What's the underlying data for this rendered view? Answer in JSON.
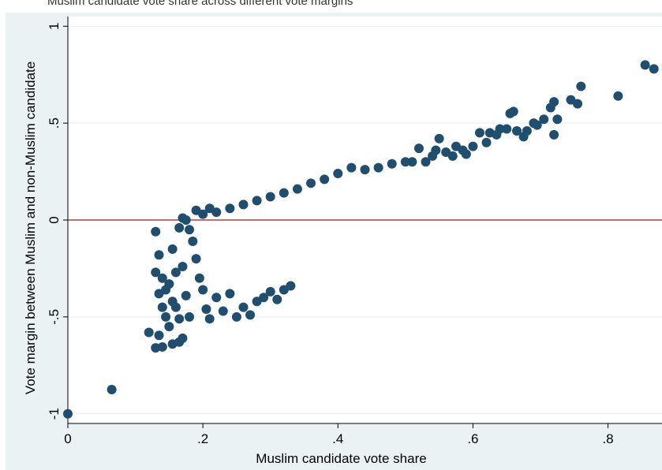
{
  "caption": "Muslim candidate vote share across different vote margins",
  "chart_data": {
    "type": "scatter",
    "title": "",
    "xlabel": "Muslim candidate vote share",
    "ylabel": "Vote margin between Muslim and non-Muslim candidate",
    "xlim": [
      0,
      0.88
    ],
    "ylim": [
      -1.05,
      1.05
    ],
    "xticks": [
      {
        "value": 0,
        "label": "0"
      },
      {
        "value": 0.2,
        "label": ".2"
      },
      {
        "value": 0.4,
        "label": ".4"
      },
      {
        "value": 0.6,
        "label": ".6"
      },
      {
        "value": 0.8,
        "label": ".8"
      }
    ],
    "yticks": [
      {
        "value": -1,
        "label": "-1"
      },
      {
        "value": -0.5,
        "label": "-.5"
      },
      {
        "value": 0,
        "label": "0"
      },
      {
        "value": 0.5,
        "label": ".5"
      },
      {
        "value": 1,
        "label": "1"
      }
    ],
    "grid": true,
    "reference_line": {
      "y": 0,
      "color": "#b0413e"
    },
    "colors": {
      "points": "#1f4e6e",
      "plot_background": "#ffffff",
      "outer_background": "#eaf2f3",
      "grid": "#e6eef0"
    },
    "points": [
      [
        0.0,
        -1.0
      ],
      [
        0.065,
        -0.875
      ],
      [
        0.12,
        -0.58
      ],
      [
        0.13,
        -0.66
      ],
      [
        0.135,
        -0.595
      ],
      [
        0.14,
        -0.655
      ],
      [
        0.155,
        -0.64
      ],
      [
        0.165,
        -0.63
      ],
      [
        0.17,
        -0.61
      ],
      [
        0.15,
        -0.55
      ],
      [
        0.145,
        -0.5
      ],
      [
        0.14,
        -0.45
      ],
      [
        0.135,
        -0.38
      ],
      [
        0.13,
        -0.27
      ],
      [
        0.13,
        -0.06
      ],
      [
        0.135,
        -0.18
      ],
      [
        0.14,
        -0.3
      ],
      [
        0.145,
        -0.36
      ],
      [
        0.15,
        -0.33
      ],
      [
        0.155,
        -0.42
      ],
      [
        0.16,
        -0.45
      ],
      [
        0.165,
        -0.51
      ],
      [
        0.16,
        -0.27
      ],
      [
        0.17,
        -0.24
      ],
      [
        0.175,
        -0.39
      ],
      [
        0.18,
        -0.5
      ],
      [
        0.155,
        -0.15
      ],
      [
        0.165,
        -0.04
      ],
      [
        0.17,
        0.01
      ],
      [
        0.175,
        0.0
      ],
      [
        0.18,
        -0.05
      ],
      [
        0.185,
        -0.11
      ],
      [
        0.19,
        -0.2
      ],
      [
        0.195,
        -0.3
      ],
      [
        0.2,
        -0.36
      ],
      [
        0.205,
        -0.46
      ],
      [
        0.21,
        -0.51
      ],
      [
        0.22,
        -0.4
      ],
      [
        0.23,
        -0.47
      ],
      [
        0.24,
        -0.38
      ],
      [
        0.25,
        -0.5
      ],
      [
        0.26,
        -0.45
      ],
      [
        0.27,
        -0.49
      ],
      [
        0.28,
        -0.42
      ],
      [
        0.29,
        -0.4
      ],
      [
        0.3,
        -0.37
      ],
      [
        0.31,
        -0.41
      ],
      [
        0.32,
        -0.36
      ],
      [
        0.33,
        -0.34
      ],
      [
        0.815,
        0.64
      ],
      [
        0.855,
        0.8
      ],
      [
        0.868,
        0.78
      ],
      [
        0.76,
        0.69
      ],
      [
        0.755,
        0.6
      ],
      [
        0.745,
        0.62
      ],
      [
        0.72,
        0.61
      ],
      [
        0.715,
        0.58
      ],
      [
        0.72,
        0.44
      ],
      [
        0.725,
        0.52
      ],
      [
        0.705,
        0.52
      ],
      [
        0.695,
        0.49
      ],
      [
        0.69,
        0.5
      ],
      [
        0.68,
        0.46
      ],
      [
        0.675,
        0.43
      ],
      [
        0.665,
        0.46
      ],
      [
        0.66,
        0.56
      ],
      [
        0.655,
        0.55
      ],
      [
        0.65,
        0.47
      ],
      [
        0.64,
        0.47
      ],
      [
        0.635,
        0.44
      ],
      [
        0.625,
        0.45
      ],
      [
        0.62,
        0.4
      ],
      [
        0.61,
        0.45
      ],
      [
        0.6,
        0.38
      ],
      [
        0.59,
        0.34
      ],
      [
        0.585,
        0.36
      ],
      [
        0.575,
        0.38
      ],
      [
        0.57,
        0.33
      ],
      [
        0.56,
        0.35
      ],
      [
        0.55,
        0.42
      ],
      [
        0.545,
        0.36
      ],
      [
        0.54,
        0.33
      ],
      [
        0.53,
        0.3
      ],
      [
        0.52,
        0.37
      ],
      [
        0.51,
        0.3
      ],
      [
        0.5,
        0.3
      ],
      [
        0.48,
        0.29
      ],
      [
        0.46,
        0.27
      ],
      [
        0.44,
        0.26
      ],
      [
        0.42,
        0.27
      ],
      [
        0.4,
        0.24
      ],
      [
        0.38,
        0.21
      ],
      [
        0.36,
        0.19
      ],
      [
        0.34,
        0.16
      ],
      [
        0.32,
        0.14
      ],
      [
        0.3,
        0.12
      ],
      [
        0.28,
        0.1
      ],
      [
        0.26,
        0.08
      ],
      [
        0.24,
        0.06
      ],
      [
        0.22,
        0.04
      ],
      [
        0.2,
        0.03
      ],
      [
        0.19,
        0.05
      ],
      [
        0.21,
        0.06
      ]
    ]
  }
}
